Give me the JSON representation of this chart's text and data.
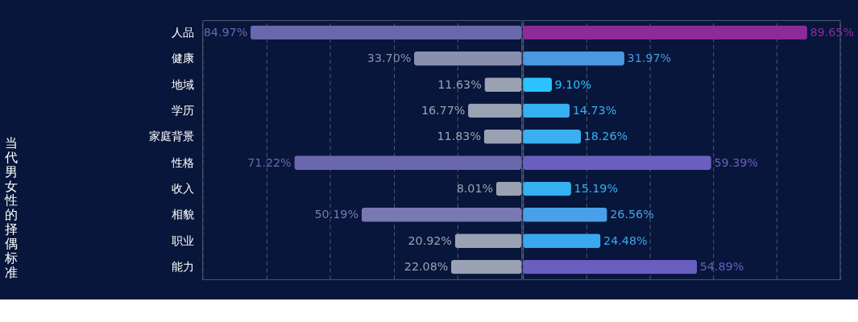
{
  "chart_data": [
    {
      "type": "bar",
      "orientation": "horizontal",
      "ylabel": "当代男女性的择偶标准",
      "tick_labels": "y",
      "grid": "x",
      "categories": [
        "人品",
        "健康",
        "地域",
        "学历",
        "家庭背景",
        "性格",
        "收入",
        "相貌",
        "职业",
        "能力"
      ],
      "xlim": [
        100,
        0
      ],
      "xticks": [
        {
          "value": 100,
          "label": null
        },
        {
          "value": 80,
          "label": null
        },
        {
          "value": 60,
          "label": null
        },
        {
          "value": 40,
          "label": null
        },
        {
          "value": 20,
          "label": null
        },
        {
          "value": 0,
          "label": null
        }
      ],
      "values": [
        84.97,
        33.7,
        11.63,
        16.77,
        11.83,
        71.22,
        8.01,
        50.19,
        20.92,
        22.08
      ],
      "value_labels": [
        "84.97%",
        "33.70%",
        "11.63%",
        "16.77%",
        "11.83%",
        "71.22%",
        "8.01%",
        "50.19%",
        "20.92%",
        "22.08%"
      ],
      "colors": [
        "#6b67ad",
        "#8a8fb0",
        "#9aa1b3",
        "#9aa1b3",
        "#9aa1b3",
        "#6b67ad",
        "#9aa1b3",
        "#7a78b0",
        "#9aa1b3",
        "#9aa1b3"
      ]
    },
    {
      "type": "bar",
      "orientation": "horizontal",
      "tick_labels": false,
      "grid": "x",
      "xlim": [
        0,
        100
      ],
      "xticks": [
        {
          "value": 0,
          "label": null
        },
        {
          "value": 20,
          "label": null
        },
        {
          "value": 40,
          "label": null
        },
        {
          "value": 60,
          "label": null
        },
        {
          "value": 80,
          "label": null
        },
        {
          "value": 100,
          "label": null
        }
      ],
      "values": [
        89.65,
        31.97,
        9.1,
        14.73,
        18.26,
        59.39,
        15.19,
        26.56,
        24.48,
        54.89
      ],
      "value_labels": [
        "89.65%",
        "31.97%",
        "9.10%",
        "14.73%",
        "18.26%",
        "59.39%",
        "15.19%",
        "26.56%",
        "24.48%",
        "54.89%"
      ],
      "colors": [
        "#8e2a9a",
        "#4a98e0",
        "#29c3ff",
        "#35b0f0",
        "#3ab0f0",
        "#6a5fc0",
        "#35b0f0",
        "#4aa0e8",
        "#3aa8f0",
        "#6a5fc0"
      ]
    }
  ]
}
